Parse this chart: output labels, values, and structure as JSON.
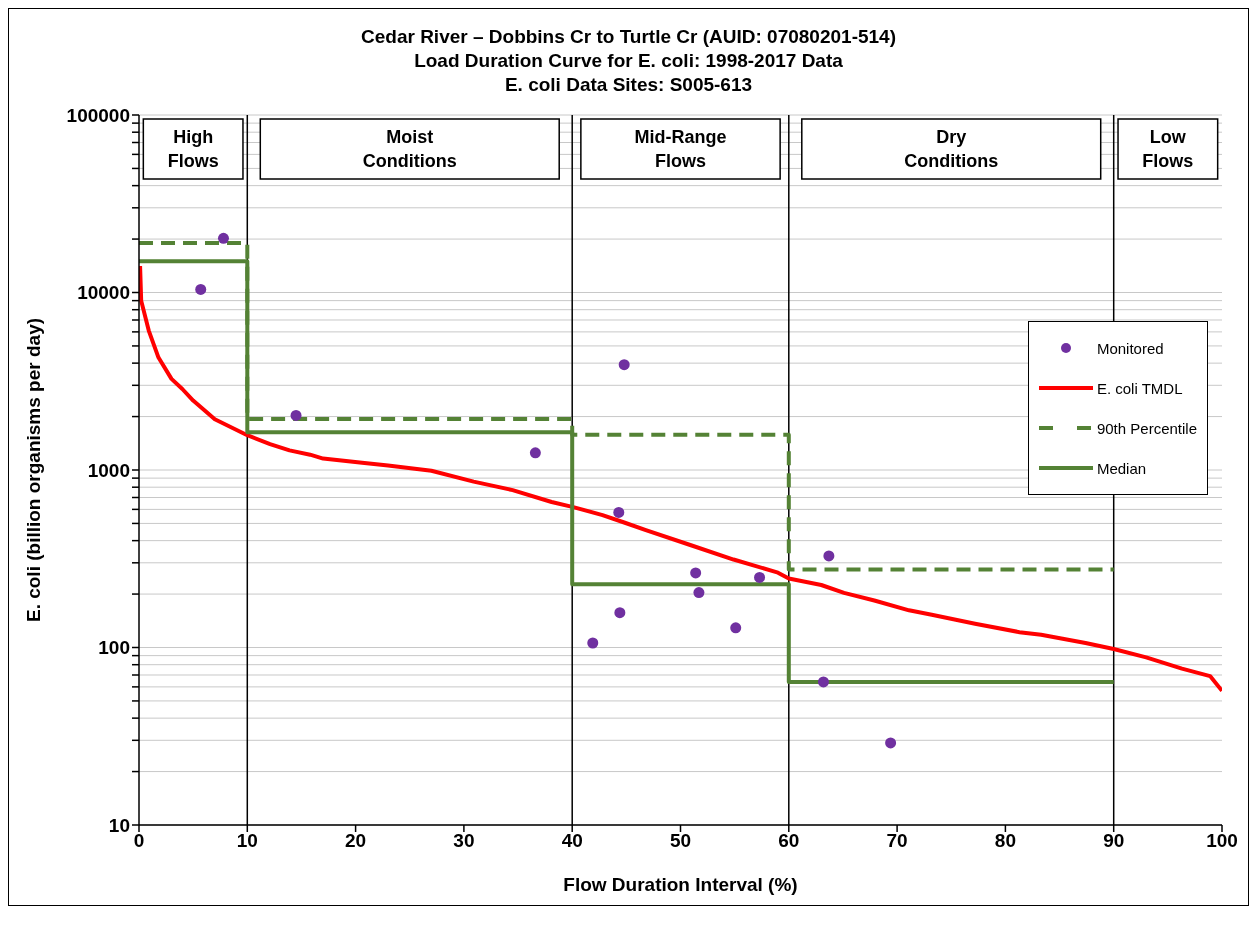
{
  "chart_data": {
    "type": "line",
    "title": "Cedar River – Dobbins Cr to Turtle Cr (AUID: 07080201-514)\nLoad Duration Curve for E. coli: 1998-2017 Data\nE. coli Data Sites: S005-613",
    "xlabel": "Flow Duration Interval (%)",
    "ylabel": "E. coli (billion organisms per day)",
    "log": "y",
    "grid": "y",
    "legend": "right",
    "xlim": [
      0,
      100
    ],
    "xticks": [
      0,
      10,
      20,
      30,
      40,
      50,
      60,
      70,
      80,
      90,
      100
    ],
    "ylim": [
      10,
      100000
    ],
    "yticks": [
      10,
      {
        "value": 20,
        "label": null
      },
      {
        "value": 30,
        "label": null
      },
      {
        "value": 40,
        "label": null
      },
      {
        "value": 50,
        "label": null
      },
      {
        "value": 60,
        "label": null
      },
      {
        "value": 70,
        "label": null
      },
      {
        "value": 80,
        "label": null
      },
      {
        "value": 90,
        "label": null
      },
      100,
      {
        "value": 200,
        "label": null
      },
      {
        "value": 300,
        "label": null
      },
      {
        "value": 400,
        "label": null
      },
      {
        "value": 500,
        "label": null
      },
      {
        "value": 600,
        "label": null
      },
      {
        "value": 700,
        "label": null
      },
      {
        "value": 800,
        "label": null
      },
      {
        "value": 900,
        "label": null
      },
      1000,
      {
        "value": 2000,
        "label": null
      },
      {
        "value": 3000,
        "label": null
      },
      {
        "value": 4000,
        "label": null
      },
      {
        "value": 5000,
        "label": null
      },
      {
        "value": 6000,
        "label": null
      },
      {
        "value": 7000,
        "label": null
      },
      {
        "value": 8000,
        "label": null
      },
      {
        "value": 9000,
        "label": null
      },
      10000,
      {
        "value": 20000,
        "label": null
      },
      {
        "value": 30000,
        "label": null
      },
      {
        "value": 40000,
        "label": null
      },
      {
        "value": 50000,
        "label": null
      },
      {
        "value": 60000,
        "label": null
      },
      {
        "value": 70000,
        "label": null
      },
      {
        "value": 80000,
        "label": null
      },
      {
        "value": 90000,
        "label": null
      },
      100000
    ],
    "ref_lines": [
      {
        "axis": "x",
        "value": 10,
        "color": "#000000"
      },
      {
        "axis": "x",
        "value": 40,
        "color": "#000000"
      },
      {
        "axis": "x",
        "value": 60,
        "color": "#000000"
      },
      {
        "axis": "x",
        "value": 90,
        "color": "#000000"
      }
    ],
    "annotations": [
      "High\nFlows",
      "Moist\nConditions",
      "Mid-Range\nFlows",
      "Dry\nConditions",
      "Low\nFlows"
    ],
    "series": [
      {
        "name": "Monitored",
        "type": "scatter",
        "marker": "circle",
        "color": "#7030a0",
        "x": [
          5.7,
          7.8,
          14.5,
          36.6,
          41.9,
          44.3,
          44.4,
          44.8,
          51.4,
          51.7,
          55.1,
          57.3,
          63.2,
          63.7,
          69.4
        ],
        "values": [
          10400,
          20200,
          2030,
          1250,
          106,
          577,
          157,
          3920,
          263,
          204,
          129,
          248,
          64,
          328,
          29
        ]
      },
      {
        "name": "E. coli TMDL",
        "marker": "none",
        "line_style": "solid",
        "color": "#ff0000",
        "x": [
          0.1,
          0.2,
          0.9,
          1.8,
          3,
          4,
          5,
          7,
          10,
          12.1,
          13.9,
          15.8,
          17,
          20.6,
          23,
          27,
          30.9,
          34.5,
          38.1,
          40.1,
          42.8,
          44.8,
          46.8,
          50.9,
          54.9,
          59,
          60,
          63,
          65.1,
          67.9,
          71.1,
          73.2,
          77.2,
          81.3,
          83.3,
          87.4,
          90,
          93,
          96.3,
          98.9,
          100
        ],
        "values": [
          14100,
          9000,
          6100,
          4300,
          3260,
          2860,
          2460,
          1930,
          1570,
          1400,
          1290,
          1220,
          1160,
          1100,
          1060,
          990,
          860,
          770,
          660,
          618,
          557,
          506,
          458,
          378,
          313,
          264,
          245,
          225,
          203,
          184,
          162,
          153,
          136,
          122,
          118,
          106,
          98,
          88,
          76,
          69,
          57
        ]
      },
      {
        "name": "90th Percentile",
        "marker": "none",
        "line_style": "dashed",
        "color": "#548235",
        "x": [
          0,
          10,
          10,
          40,
          40,
          60,
          60,
          90
        ],
        "values": [
          19000,
          19000,
          1940,
          1940,
          1580,
          1580,
          275,
          275
        ]
      },
      {
        "name": "Median",
        "marker": "none",
        "line_style": "solid",
        "color": "#548235",
        "x": [
          0,
          10,
          10,
          40,
          40,
          60,
          60,
          90
        ],
        "values": [
          15000,
          15000,
          1630,
          1630,
          227,
          227,
          64,
          64
        ]
      }
    ]
  }
}
